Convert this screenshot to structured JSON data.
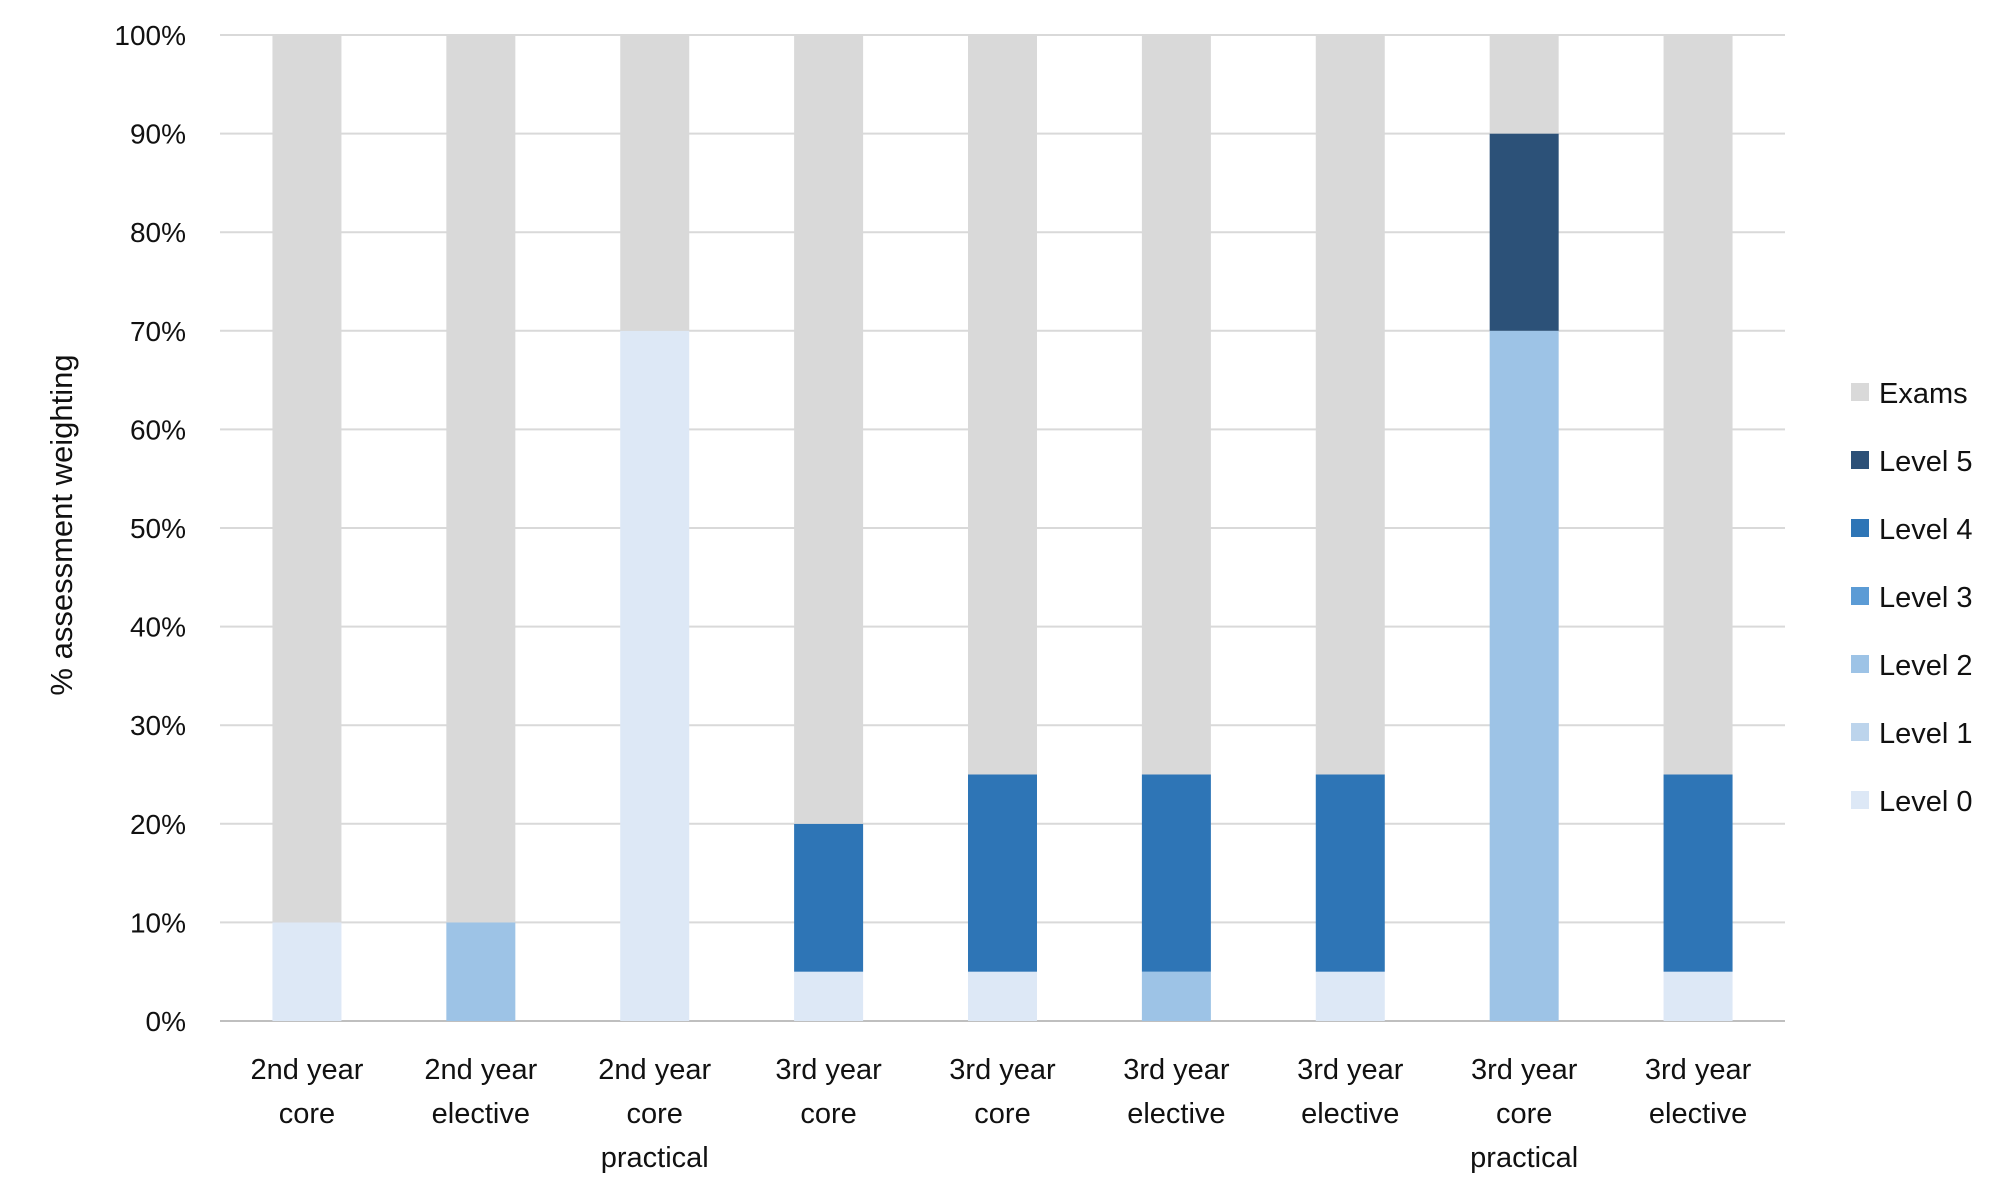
{
  "chart_data": {
    "type": "bar",
    "stacked": true,
    "title": "",
    "xlabel": "",
    "ylabel": "% assessment weighting",
    "ylim": [
      0,
      100
    ],
    "yticks": [
      "0%",
      "10%",
      "20%",
      "30%",
      "40%",
      "50%",
      "60%",
      "70%",
      "80%",
      "90%",
      "100%"
    ],
    "grid": true,
    "legend_position": "right",
    "categories": [
      [
        "2nd year",
        "core"
      ],
      [
        "2nd year",
        "elective"
      ],
      [
        "2nd year",
        "core",
        "practical"
      ],
      [
        "3rd year",
        "core"
      ],
      [
        "3rd year",
        "core"
      ],
      [
        "3rd year",
        "elective"
      ],
      [
        "3rd year",
        "elective"
      ],
      [
        "3rd year",
        "core",
        "practical"
      ],
      [
        "3rd year",
        "elective"
      ]
    ],
    "series": [
      {
        "name": "Level 0",
        "color": "#dde8f6",
        "values": [
          10,
          0,
          70,
          5,
          5,
          0,
          5,
          0,
          5
        ]
      },
      {
        "name": "Level 1",
        "color": "#bcd4ec",
        "values": [
          0,
          0,
          0,
          0,
          0,
          0,
          0,
          0,
          0
        ]
      },
      {
        "name": "Level 2",
        "color": "#9dc3e6",
        "values": [
          0,
          10,
          0,
          0,
          0,
          5,
          0,
          70,
          0
        ]
      },
      {
        "name": "Level 3",
        "color": "#5b9bd5",
        "values": [
          0,
          0,
          0,
          0,
          0,
          0,
          0,
          0,
          0
        ]
      },
      {
        "name": "Level 4",
        "color": "#2e75b6",
        "values": [
          0,
          0,
          0,
          15,
          20,
          20,
          20,
          0,
          20
        ]
      },
      {
        "name": "Level 5",
        "color": "#2c5178",
        "values": [
          0,
          0,
          0,
          0,
          0,
          0,
          0,
          20,
          0
        ]
      },
      {
        "name": "Exams",
        "color": "#d9d9d9",
        "values": [
          90,
          90,
          30,
          80,
          75,
          75,
          75,
          10,
          75
        ]
      }
    ],
    "legend_order": [
      "Exams",
      "Level 5",
      "Level 4",
      "Level 3",
      "Level 2",
      "Level 1",
      "Level 0"
    ]
  }
}
